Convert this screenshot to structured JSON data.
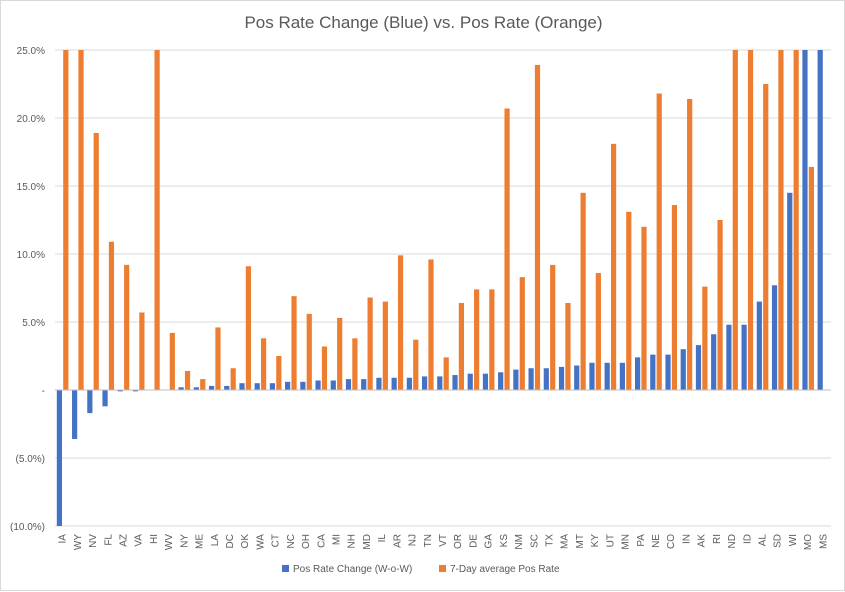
{
  "chart_data": {
    "type": "bar",
    "title": "Pos Rate Change (Blue) vs. Pos Rate (Orange)",
    "xlabel": "",
    "ylabel": "",
    "ylim": [
      -10,
      25
    ],
    "yticks": [
      {
        "value": 25,
        "label": "25.0%"
      },
      {
        "value": 20,
        "label": "20.0%"
      },
      {
        "value": 15,
        "label": "15.0%"
      },
      {
        "value": 10,
        "label": "10.0%"
      },
      {
        "value": 5,
        "label": "5.0%"
      },
      {
        "value": 0,
        "label": "-"
      },
      {
        "value": -5,
        "label": "(5.0%)"
      },
      {
        "value": -10,
        "label": "(10.0%)"
      }
    ],
    "grid": true,
    "legend_position": "bottom",
    "categories": [
      "IA",
      "WY",
      "NV",
      "FL",
      "AZ",
      "VA",
      "HI",
      "WV",
      "NY",
      "ME",
      "LA",
      "DC",
      "OK",
      "WA",
      "CT",
      "NC",
      "OH",
      "CA",
      "MI",
      "NH",
      "MD",
      "IL",
      "AR",
      "NJ",
      "TN",
      "VT",
      "OR",
      "DE",
      "GA",
      "KS",
      "NM",
      "SC",
      "TX",
      "MA",
      "MT",
      "KY",
      "UT",
      "MN",
      "PA",
      "NE",
      "CO",
      "IN",
      "AK",
      "RI",
      "ND",
      "ID",
      "AL",
      "SD",
      "WI",
      "MO",
      "MS"
    ],
    "series": [
      {
        "name": "Pos Rate Change (W-o-W)",
        "color": "#4472c4",
        "values": [
          -10,
          -3.6,
          -1.7,
          -1.2,
          -0.1,
          -0.1,
          0,
          0,
          0.2,
          0.2,
          0.3,
          0.3,
          0.5,
          0.5,
          0.5,
          0.6,
          0.6,
          0.7,
          0.7,
          0.8,
          0.8,
          0.9,
          0.9,
          0.9,
          1.0,
          1.0,
          1.1,
          1.2,
          1.2,
          1.3,
          1.5,
          1.6,
          1.6,
          1.7,
          1.8,
          2.0,
          2.0,
          2.0,
          2.4,
          2.6,
          2.6,
          3.0,
          3.3,
          4.1,
          4.8,
          4.8,
          6.5,
          7.7,
          14.5,
          25,
          25
        ]
      },
      {
        "name": "7-Day average Pos Rate",
        "color": "#ed7d31",
        "values": [
          25,
          25,
          18.9,
          10.9,
          9.2,
          5.7,
          25,
          4.2,
          1.4,
          0.8,
          4.6,
          1.6,
          9.1,
          3.8,
          2.5,
          6.9,
          5.6,
          3.2,
          5.3,
          3.8,
          6.8,
          6.5,
          9.9,
          3.7,
          9.6,
          2.4,
          6.4,
          7.4,
          7.4,
          20.7,
          8.3,
          23.9,
          9.2,
          6.4,
          14.5,
          8.6,
          18.1,
          13.1,
          12.0,
          21.8,
          13.6,
          21.4,
          7.6,
          12.5,
          25,
          25,
          22.5,
          25,
          25,
          16.4,
          0
        ]
      }
    ]
  }
}
